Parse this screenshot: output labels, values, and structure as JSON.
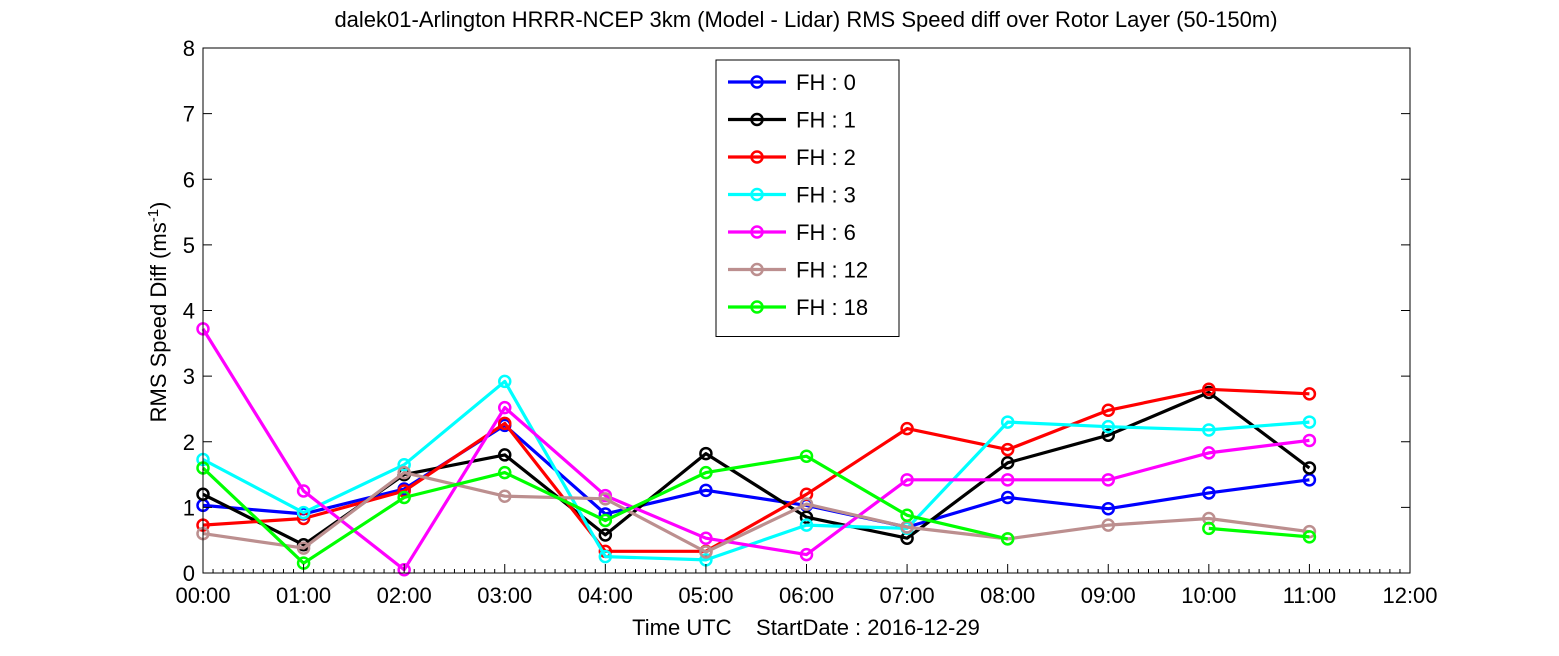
{
  "chart_data": {
    "type": "line",
    "title": "dalek01-Arlington HRRR-NCEP 3km (Model - Lidar) RMS Speed diff over Rotor Layer (50-150m)",
    "xlabel": "Time UTC    StartDate : 2016-12-29",
    "ylabel": "RMS Speed Diff (ms",
    "ylabel_sup": "-1",
    "ylabel_close": ")",
    "xlim": [
      0,
      12
    ],
    "ylim": [
      0,
      8
    ],
    "x_ticks": [
      0,
      1,
      2,
      3,
      4,
      5,
      6,
      7,
      8,
      9,
      10,
      11,
      12
    ],
    "x_tick_labels": [
      "00:00",
      "01:00",
      "02:00",
      "03:00",
      "04:00",
      "05:00",
      "06:00",
      "07:00",
      "08:00",
      "09:00",
      "10:00",
      "11:00",
      "12:00"
    ],
    "y_ticks": [
      0,
      1,
      2,
      3,
      4,
      5,
      6,
      7,
      8
    ],
    "y_tick_labels": [
      "0",
      "1",
      "2",
      "3",
      "4",
      "5",
      "6",
      "7",
      "8"
    ],
    "legend_placement": "top-center",
    "x": [
      0,
      1,
      2,
      3,
      4,
      5,
      6,
      7,
      8,
      9,
      10,
      11
    ],
    "series": [
      {
        "name": "FH : 0",
        "color": "#0000ff",
        "values": [
          1.03,
          0.9,
          1.28,
          2.25,
          0.9,
          1.26,
          1.03,
          0.7,
          1.15,
          0.98,
          1.22,
          1.42
        ]
      },
      {
        "name": "FH : 1",
        "color": "#000000",
        "values": [
          1.2,
          0.43,
          1.5,
          1.8,
          0.58,
          1.82,
          0.85,
          0.53,
          1.68,
          2.1,
          2.75,
          1.6
        ]
      },
      {
        "name": "FH : 2",
        "color": "#ff0000",
        "values": [
          0.73,
          0.83,
          1.25,
          2.28,
          0.33,
          0.33,
          1.2,
          2.2,
          1.88,
          2.48,
          2.8,
          2.73
        ]
      },
      {
        "name": "FH : 3",
        "color": "#00ffff",
        "values": [
          1.73,
          0.92,
          1.65,
          2.92,
          0.25,
          0.2,
          0.73,
          0.68,
          2.3,
          2.23,
          2.18,
          2.3
        ]
      },
      {
        "name": "FH : 6",
        "color": "#ff00ff",
        "values": [
          3.72,
          1.25,
          0.05,
          2.52,
          1.18,
          0.53,
          0.28,
          1.42,
          1.42,
          1.42,
          1.83,
          2.02
        ]
      },
      {
        "name": "FH : 12",
        "color": "#bc8f8f",
        "values": [
          0.6,
          0.38,
          1.53,
          1.17,
          1.13,
          0.32,
          1.05,
          0.7,
          0.52,
          0.73,
          0.83,
          0.63
        ]
      },
      {
        "name": "FH : 18",
        "color": "#00ff00",
        "values": [
          1.6,
          0.15,
          1.15,
          1.53,
          0.8,
          1.53,
          1.78,
          0.88,
          0.52,
          null,
          0.68,
          0.55
        ]
      }
    ]
  }
}
